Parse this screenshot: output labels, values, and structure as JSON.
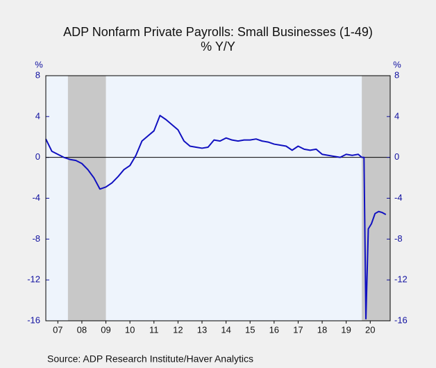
{
  "chart_data": {
    "type": "line",
    "title": "ADP Nonfarm Private Payrolls: Small Businesses (1-49)",
    "subtitle": "% Y/Y",
    "y_label": "%",
    "y2_label": "%",
    "source": "Source:  ADP Research Institute/Haver Analytics",
    "xlim": [
      2007,
      2021.33
    ],
    "ylim": [
      -16,
      8
    ],
    "yticks": [
      -16,
      -12,
      -8,
      -4,
      0,
      4,
      8
    ],
    "y2lim": [
      -16,
      8
    ],
    "y2ticks": [
      -16,
      -12,
      -8,
      -4,
      0,
      4,
      8
    ],
    "xticks": [
      {
        "value": 2007.5,
        "label": "07"
      },
      {
        "value": 2008.5,
        "label": "08"
      },
      {
        "value": 2009.5,
        "label": "09"
      },
      {
        "value": 2010.5,
        "label": "10"
      },
      {
        "value": 2011.5,
        "label": "11"
      },
      {
        "value": 2012.5,
        "label": "12"
      },
      {
        "value": 2013.5,
        "label": "13"
      },
      {
        "value": 2014.5,
        "label": "14"
      },
      {
        "value": 2015.5,
        "label": "15"
      },
      {
        "value": 2016.5,
        "label": "16"
      },
      {
        "value": 2017.5,
        "label": "17"
      },
      {
        "value": 2018.5,
        "label": "18"
      },
      {
        "value": 2019.5,
        "label": "19"
      },
      {
        "value": 2020.5,
        "label": "20"
      }
    ],
    "shaded_periods": [
      [
        2007.92,
        2009.5
      ],
      [
        2020.15,
        2021.33
      ]
    ],
    "shade_color": "#c8c8c8",
    "plot_background": "#eef4fc",
    "x": [
      2007.0,
      2007.25,
      2007.5,
      2007.75,
      2008.0,
      2008.25,
      2008.5,
      2008.75,
      2009.0,
      2009.25,
      2009.5,
      2009.75,
      2010.0,
      2010.25,
      2010.5,
      2010.75,
      2011.0,
      2011.25,
      2011.5,
      2011.75,
      2012.0,
      2012.25,
      2012.5,
      2012.75,
      2013.0,
      2013.25,
      2013.5,
      2013.75,
      2014.0,
      2014.25,
      2014.5,
      2014.75,
      2015.0,
      2015.25,
      2015.5,
      2015.75,
      2016.0,
      2016.25,
      2016.5,
      2016.75,
      2017.0,
      2017.25,
      2017.5,
      2017.75,
      2018.0,
      2018.25,
      2018.5,
      2018.75,
      2019.0,
      2019.25,
      2019.5,
      2019.75,
      2020.0,
      2020.15,
      2020.24,
      2020.32,
      2020.42,
      2020.55,
      2020.7,
      2020.85,
      2021.0,
      2021.15
    ],
    "series": [
      {
        "name": "Small Businesses (1-49)",
        "color": "#1010c0",
        "values": [
          1.8,
          0.6,
          0.3,
          0.0,
          -0.2,
          -0.3,
          -0.6,
          -1.2,
          -2.0,
          -3.1,
          -2.9,
          -2.5,
          -1.9,
          -1.2,
          -0.8,
          0.2,
          1.6,
          2.1,
          2.6,
          4.1,
          3.7,
          3.2,
          2.7,
          1.6,
          1.1,
          1.0,
          0.9,
          1.0,
          1.7,
          1.6,
          1.9,
          1.7,
          1.6,
          1.7,
          1.7,
          1.8,
          1.6,
          1.5,
          1.3,
          1.2,
          1.1,
          0.7,
          1.1,
          0.8,
          0.7,
          0.8,
          0.3,
          0.2,
          0.1,
          0.0,
          0.3,
          0.2,
          0.3,
          0.0,
          0.0,
          -15.8,
          -7.0,
          -6.5,
          -5.5,
          -5.3,
          -5.4,
          -5.6
        ]
      }
    ]
  }
}
